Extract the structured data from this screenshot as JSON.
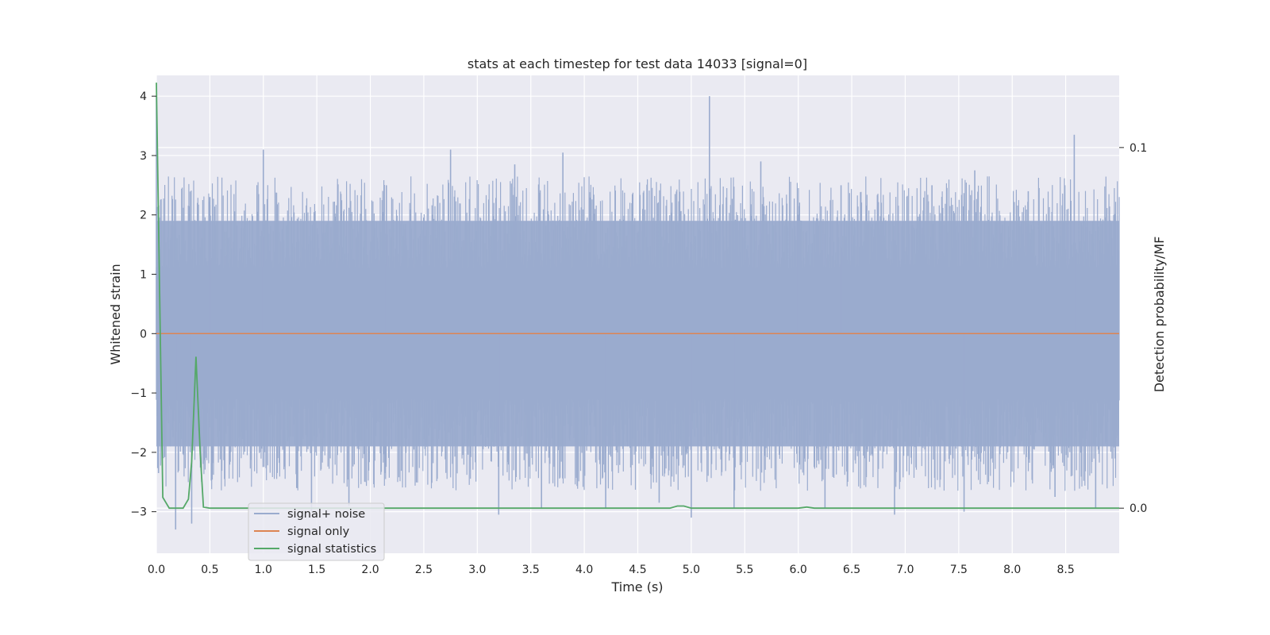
{
  "chart_data": {
    "type": "line",
    "title": "stats at each timestep for test data 14033 [signal=0]",
    "xlabel": "Time (s)",
    "ylabel": "Whitened strain",
    "y2label": "Detection probability/MF",
    "xlim": [
      0.0,
      9.0
    ],
    "ylim": [
      -3.7,
      4.35
    ],
    "y2lim": [
      -0.0125,
      0.12
    ],
    "xticks": [
      0.0,
      0.5,
      1.0,
      1.5,
      2.0,
      2.5,
      3.0,
      3.5,
      4.0,
      4.5,
      5.0,
      5.5,
      6.0,
      6.5,
      7.0,
      7.5,
      8.0,
      8.5
    ],
    "xtick_labels": [
      "0.0",
      "0.5",
      "1.0",
      "1.5",
      "2.0",
      "2.5",
      "3.0",
      "3.5",
      "4.0",
      "4.5",
      "5.0",
      "5.5",
      "6.0",
      "6.5",
      "7.0",
      "7.5",
      "8.0",
      "8.5"
    ],
    "yticks": [
      4,
      3,
      2,
      1,
      0,
      -1,
      -2,
      -3
    ],
    "ytick_labels": [
      "4",
      "3",
      "2",
      "1",
      "0",
      "−1",
      "−2",
      "−3"
    ],
    "y2ticks": [
      0.1,
      0.0
    ],
    "y2tick_labels": [
      "0.1",
      "0.0"
    ],
    "grid": true,
    "legend_position": "lower-left",
    "series": [
      {
        "name": "signal+ noise",
        "axis": "left",
        "color": "#9aabce",
        "style": "dense noise",
        "band_low": -1.9,
        "band_high": 1.9,
        "peaks": [
          [
            0.0,
            4.0
          ],
          [
            0.02,
            -2.35
          ],
          [
            0.18,
            -3.3
          ],
          [
            0.33,
            -3.2
          ],
          [
            0.5,
            2.3
          ],
          [
            1.0,
            3.1
          ],
          [
            1.45,
            -3.0
          ],
          [
            1.8,
            -2.9
          ],
          [
            2.15,
            2.5
          ],
          [
            2.75,
            3.1
          ],
          [
            3.2,
            -3.05
          ],
          [
            3.35,
            2.85
          ],
          [
            3.6,
            -2.95
          ],
          [
            3.8,
            3.05
          ],
          [
            4.2,
            -2.95
          ],
          [
            4.45,
            2.35
          ],
          [
            4.7,
            -2.85
          ],
          [
            5.0,
            -3.1
          ],
          [
            5.17,
            4.0
          ],
          [
            5.4,
            -2.95
          ],
          [
            5.65,
            2.9
          ],
          [
            6.0,
            2.0
          ],
          [
            6.25,
            -2.95
          ],
          [
            6.4,
            2.5
          ],
          [
            6.9,
            -3.05
          ],
          [
            7.25,
            2.5
          ],
          [
            7.55,
            -3.0
          ],
          [
            7.65,
            2.75
          ],
          [
            8.15,
            2.4
          ],
          [
            8.4,
            -2.75
          ],
          [
            8.58,
            3.35
          ],
          [
            8.78,
            -2.95
          ],
          [
            8.95,
            2.0
          ]
        ]
      },
      {
        "name": "signal only",
        "axis": "left",
        "color": "#dd8452",
        "x": [
          0.0,
          9.0
        ],
        "y": [
          0.0,
          0.0
        ]
      },
      {
        "name": "signal statistics",
        "axis": "right",
        "color": "#55a868",
        "x": [
          0.0,
          0.06,
          0.12,
          0.18,
          0.25,
          0.3,
          0.33,
          0.37,
          0.41,
          0.44,
          0.5,
          4.8,
          4.87,
          4.93,
          5.0,
          6.0,
          6.08,
          6.15,
          9.0
        ],
        "y": [
          0.118,
          0.003,
          0.0,
          0.0,
          0.0,
          0.0025,
          0.013,
          0.042,
          0.015,
          0.0003,
          0.0,
          0.0,
          0.0006,
          0.0006,
          0.0,
          0.0,
          0.0003,
          0.0,
          0.0
        ]
      }
    ]
  }
}
